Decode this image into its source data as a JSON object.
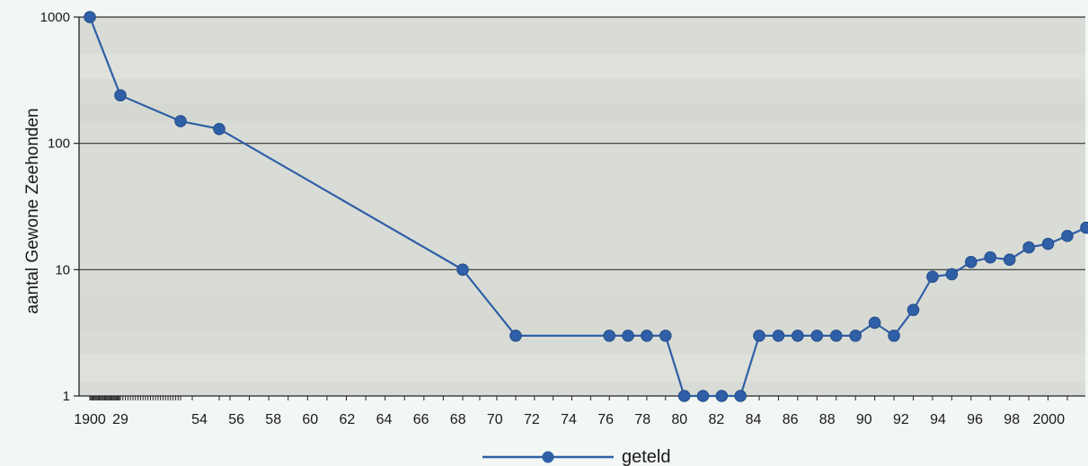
{
  "chart_data": {
    "type": "line",
    "ylabel": "aantal Gewone Zeehonden",
    "yscale": "log",
    "ylim": [
      1,
      1000
    ],
    "yticks": [
      1,
      10,
      100,
      1000
    ],
    "ytick_labels": [
      "1",
      "10",
      "100",
      "1000"
    ],
    "grid": "horizontal",
    "legend_placement": "bottom-center",
    "colors": {
      "line": "#2f5fa6",
      "marker": "#2f5fa6",
      "grid": "#333333",
      "plot_bg": "#d9dcd6"
    },
    "xtick_labels": [
      "1900",
      "29",
      "54",
      "56",
      "58",
      "60",
      "62",
      "64",
      "66",
      "68",
      "70",
      "72",
      "74",
      "76",
      "78",
      "80",
      "82",
      "84",
      "86",
      "88",
      "90",
      "92",
      "94",
      "96",
      "98",
      "2000"
    ],
    "x": [
      "1900",
      "1929",
      "1953",
      "1955",
      "1968",
      "1971",
      "1976",
      "1977",
      "1978",
      "1979",
      "1980",
      "1981",
      "1982",
      "1983",
      "1984",
      "1985",
      "1986",
      "1987",
      "1988",
      "1989",
      "1990",
      "1991",
      "1992",
      "1993",
      "1994",
      "1995",
      "1996",
      "1997",
      "1998",
      "1999",
      "2000",
      "2001",
      "2002"
    ],
    "series": [
      {
        "name": "geteld",
        "values": [
          1000,
          240,
          150,
          130,
          10,
          3,
          3,
          3,
          3,
          3,
          1,
          1,
          1,
          1,
          3,
          3,
          3,
          3,
          3,
          3,
          3.8,
          3,
          4.8,
          8.8,
          9.2,
          11.5,
          12.5,
          12,
          15,
          16,
          18.5,
          21.5,
          19
        ]
      }
    ]
  }
}
